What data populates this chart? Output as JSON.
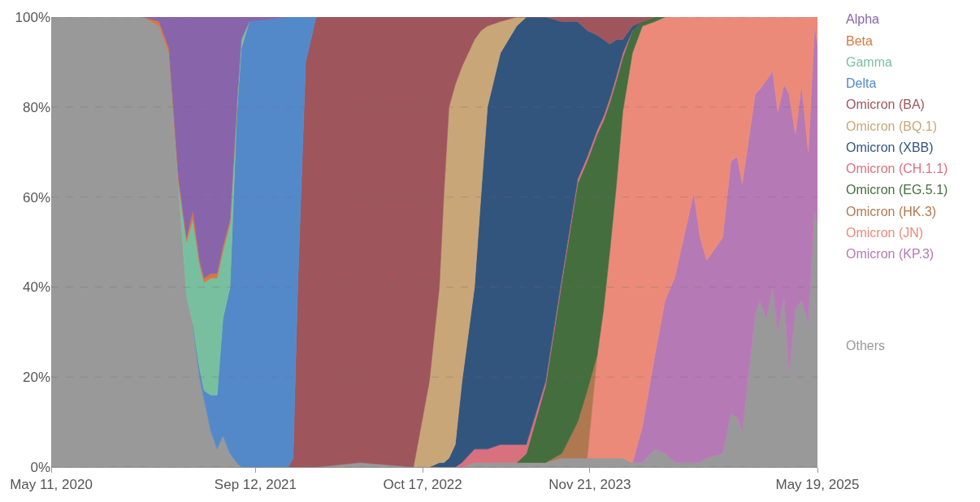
{
  "chart_data": {
    "type": "area",
    "stacked": true,
    "x": [
      "2020-05-11",
      "2020-12-17",
      "2021-01-24",
      "2021-02-17",
      "2021-03-12",
      "2021-03-31",
      "2021-04-15",
      "2021-05-01",
      "2021-05-12",
      "2021-05-28",
      "2021-06-12",
      "2021-06-26",
      "2021-07-13",
      "2021-07-29",
      "2021-08-09",
      "2021-08-28",
      "2021-11-29",
      "2021-12-11",
      "2021-12-22",
      "2022-01-10",
      "2022-02-04",
      "2022-05-21",
      "2022-09-25",
      "2022-11-02",
      "2022-11-26",
      "2022-12-07",
      "2022-12-19",
      "2023-01-03",
      "2023-01-19",
      "2023-02-18",
      "2023-03-06",
      "2023-03-21",
      "2023-04-21",
      "2023-05-30",
      "2023-06-22",
      "2023-08-07",
      "2023-09-15",
      "2023-10-23",
      "2023-11-15",
      "2023-12-09",
      "2023-12-24",
      "2024-01-08",
      "2024-01-24",
      "2024-02-08",
      "2024-03-02",
      "2024-03-26",
      "2024-04-25",
      "2024-05-19",
      "2024-06-11",
      "2024-07-27",
      "2024-08-11",
      "2024-08-27",
      "2024-10-04",
      "2024-10-24",
      "2024-11-08",
      "2024-11-20",
      "2024-12-21",
      "2025-01-01",
      "2025-01-17",
      "2025-02-01",
      "2025-02-13",
      "2025-02-28",
      "2025-03-12",
      "2025-03-27",
      "2025-04-11",
      "2025-04-27",
      "2025-05-12",
      "2025-05-19"
    ],
    "series": [
      {
        "name": "Others",
        "color": "#999999",
        "values": [
          100,
          100,
          98,
          92,
          62,
          38,
          32,
          20,
          15,
          8,
          4,
          7,
          3,
          1,
          0,
          0,
          0,
          0,
          0,
          0,
          0,
          1,
          0,
          0,
          0,
          0,
          0,
          0,
          0,
          1,
          1,
          1,
          1,
          1,
          1,
          1,
          2,
          2,
          2,
          2,
          2,
          2,
          2,
          2,
          1,
          1,
          4,
          3,
          1,
          1,
          1,
          2,
          3,
          12,
          11,
          8,
          34,
          37,
          33,
          40,
          30,
          38,
          21,
          35,
          37,
          32,
          57,
          54
        ]
      },
      {
        "name": "Omicron (KP.3)",
        "color": "#b57ab5",
        "values": [
          null,
          null,
          null,
          null,
          null,
          null,
          null,
          null,
          null,
          null,
          null,
          null,
          null,
          null,
          null,
          null,
          null,
          null,
          null,
          null,
          null,
          null,
          null,
          null,
          null,
          null,
          null,
          null,
          null,
          null,
          null,
          null,
          null,
          null,
          null,
          null,
          null,
          null,
          null,
          null,
          null,
          null,
          null,
          null,
          0,
          8,
          21,
          34,
          41,
          60,
          50,
          44,
          48,
          56,
          58,
          55,
          49,
          47,
          53,
          48,
          49,
          47,
          62,
          39,
          48,
          38,
          41,
          40
        ]
      },
      {
        "name": "Omicron (JN)",
        "color": "#ec8a7a",
        "values": [
          null,
          null,
          null,
          null,
          null,
          null,
          null,
          null,
          null,
          null,
          null,
          null,
          null,
          null,
          null,
          null,
          null,
          null,
          null,
          null,
          null,
          null,
          null,
          null,
          null,
          null,
          null,
          null,
          null,
          null,
          null,
          null,
          null,
          null,
          null,
          null,
          null,
          null,
          0,
          23,
          33,
          46,
          61,
          77,
          91,
          89,
          74,
          63,
          58,
          39,
          49,
          54,
          49,
          32,
          31,
          37,
          17,
          16,
          14,
          12,
          21,
          15,
          17,
          26,
          15,
          30,
          2,
          6
        ]
      },
      {
        "name": "Omicron (HK.3)",
        "color": "#b07850",
        "values": [
          null,
          null,
          null,
          null,
          null,
          null,
          null,
          null,
          null,
          null,
          null,
          null,
          null,
          null,
          null,
          null,
          null,
          null,
          null,
          null,
          null,
          null,
          null,
          null,
          null,
          null,
          null,
          null,
          null,
          null,
          null,
          null,
          null,
          null,
          null,
          0,
          1,
          8,
          15,
          0,
          null,
          null,
          null,
          null,
          null,
          null,
          null,
          null,
          null,
          null,
          null,
          null,
          null,
          null,
          null,
          null,
          null,
          null,
          null,
          null,
          null,
          null,
          null,
          null,
          null,
          null,
          null,
          null
        ]
      },
      {
        "name": "Omicron (EG.5.1)",
        "color": "#456e3e",
        "values": [
          null,
          null,
          null,
          null,
          null,
          null,
          null,
          null,
          null,
          null,
          null,
          null,
          null,
          null,
          null,
          null,
          null,
          null,
          null,
          null,
          null,
          null,
          null,
          null,
          null,
          null,
          null,
          null,
          null,
          null,
          null,
          null,
          null,
          0,
          2,
          17,
          38,
          53,
          51,
          49,
          42,
          33,
          23,
          12,
          5,
          1,
          1,
          0,
          null,
          null,
          null,
          null,
          null,
          null,
          null,
          null,
          null,
          null,
          null,
          null,
          null,
          null,
          null,
          null,
          null,
          null,
          null,
          null
        ]
      },
      {
        "name": "Omicron (CH.1.1)",
        "color": "#d9707e",
        "values": [
          null,
          null,
          null,
          null,
          null,
          null,
          null,
          null,
          null,
          null,
          null,
          null,
          null,
          null,
          null,
          null,
          null,
          null,
          null,
          null,
          null,
          null,
          null,
          null,
          null,
          null,
          null,
          0,
          1,
          3,
          3,
          3,
          4,
          4,
          2,
          1,
          1,
          1,
          1,
          1,
          1,
          1,
          1,
          1,
          0,
          null,
          null,
          null,
          null,
          null,
          null,
          null,
          null,
          null,
          null,
          null,
          null,
          null,
          null,
          null,
          null,
          null,
          null,
          null,
          null,
          null,
          null,
          null
        ]
      },
      {
        "name": "Omicron (XBB)",
        "color": "#32557e",
        "values": [
          null,
          null,
          null,
          null,
          null,
          null,
          null,
          null,
          null,
          null,
          null,
          null,
          null,
          null,
          null,
          null,
          null,
          null,
          null,
          null,
          null,
          null,
          null,
          0,
          1,
          1,
          2,
          5,
          18,
          36,
          57,
          76,
          87,
          93,
          95,
          81,
          57,
          35,
          28,
          21,
          17,
          12,
          8,
          3,
          1,
          0,
          null,
          null,
          null,
          null,
          null,
          null,
          null,
          null,
          null,
          null,
          null,
          null,
          null,
          null,
          null,
          null,
          null,
          null,
          null,
          null,
          null,
          null
        ]
      },
      {
        "name": "Omicron (BQ.1)",
        "color": "#c9a678",
        "values": [
          null,
          null,
          null,
          null,
          null,
          null,
          null,
          null,
          null,
          null,
          null,
          null,
          null,
          null,
          null,
          null,
          null,
          null,
          null,
          null,
          null,
          null,
          0,
          19,
          39,
          60,
          78,
          80,
          70,
          55,
          36,
          18,
          7,
          2,
          0,
          null,
          null,
          null,
          null,
          null,
          null,
          null,
          null,
          null,
          null,
          null,
          null,
          null,
          null,
          null,
          null,
          null,
          null,
          null,
          null,
          null,
          null,
          null,
          null,
          null,
          null,
          null,
          null,
          null,
          null,
          null,
          null,
          null
        ]
      },
      {
        "name": "Omicron (BA)",
        "color": "#9e555c",
        "values": [
          null,
          null,
          null,
          null,
          null,
          null,
          null,
          null,
          null,
          null,
          null,
          null,
          null,
          null,
          null,
          null,
          0,
          2,
          40,
          90,
          100,
          99,
          100,
          81,
          60,
          39,
          20,
          15,
          11,
          5,
          3,
          2,
          1,
          0,
          0,
          0,
          1,
          1,
          3,
          4,
          5,
          6,
          5,
          5,
          2,
          1,
          0,
          null,
          null,
          null,
          null,
          null,
          null,
          null,
          null,
          null,
          null,
          null,
          null,
          null,
          null,
          null,
          null,
          null,
          null,
          null,
          null,
          null
        ]
      },
      {
        "name": "Delta",
        "color": "#5389c9",
        "values": [
          null,
          null,
          null,
          null,
          null,
          null,
          0,
          2,
          2,
          8,
          12,
          26,
          37,
          77,
          93,
          99,
          100,
          98,
          60,
          10,
          0,
          null,
          null,
          null,
          null,
          null,
          null,
          null,
          null,
          null,
          null,
          null,
          null,
          null,
          null,
          null,
          null,
          null,
          null,
          null,
          null,
          null,
          null,
          null,
          null,
          null,
          null,
          null,
          null,
          null,
          null,
          null,
          null,
          null,
          null,
          null,
          null,
          null,
          null,
          null,
          null,
          null,
          null,
          null,
          null,
          null,
          null,
          null
        ]
      },
      {
        "name": "Gamma",
        "color": "#78bf9f",
        "values": [
          null,
          null,
          null,
          0,
          1,
          12,
          23,
          23,
          24,
          26,
          26,
          15,
          14,
          2,
          2,
          0,
          null,
          null,
          null,
          null,
          null,
          null,
          null,
          null,
          null,
          null,
          null,
          null,
          null,
          null,
          null,
          null,
          null,
          null,
          null,
          null,
          null,
          null,
          null,
          null,
          null,
          null,
          null,
          null,
          null,
          null,
          null,
          null,
          null,
          null,
          null,
          null,
          null,
          null,
          null,
          null,
          null,
          null,
          null,
          null,
          null,
          null,
          null,
          null,
          null,
          null,
          null,
          null
        ]
      },
      {
        "name": "Beta",
        "color": "#d8783e",
        "values": [
          null,
          0,
          1,
          1,
          1,
          1,
          2,
          1,
          1,
          1,
          1,
          1,
          1,
          0,
          null,
          null,
          null,
          null,
          null,
          null,
          null,
          null,
          null,
          null,
          null,
          null,
          null,
          null,
          null,
          null,
          null,
          null,
          null,
          null,
          null,
          null,
          null,
          null,
          null,
          null,
          null,
          null,
          null,
          null,
          null,
          null,
          null,
          null,
          null,
          null,
          null,
          null,
          null,
          null,
          null,
          null,
          null,
          null,
          null,
          null,
          null,
          null,
          null,
          null,
          null,
          null,
          null,
          null
        ]
      },
      {
        "name": "Alpha",
        "color": "#8864ab",
        "values": [
          null,
          0,
          1,
          7,
          36,
          49,
          43,
          54,
          58,
          57,
          57,
          51,
          45,
          20,
          5,
          1,
          0,
          null,
          null,
          null,
          null,
          null,
          null,
          null,
          null,
          null,
          null,
          null,
          null,
          null,
          null,
          null,
          null,
          null,
          null,
          null,
          null,
          null,
          null,
          null,
          null,
          null,
          null,
          null,
          null,
          null,
          null,
          null,
          null,
          null,
          null,
          null,
          null,
          null,
          null,
          null,
          null,
          null,
          null,
          null,
          null,
          null,
          null,
          null,
          null,
          null,
          null,
          null
        ]
      }
    ],
    "xlim": [
      "2020-05-11",
      "2025-05-19"
    ],
    "xticks": [
      {
        "value": "2020-05-11",
        "label": "May 11, 2020"
      },
      {
        "value": "2021-09-12",
        "label": "Sep 12, 2021"
      },
      {
        "value": "2022-10-17",
        "label": "Oct 17, 2022"
      },
      {
        "value": "2023-11-21",
        "label": "Nov 21, 2023"
      },
      {
        "value": "2025-05-19",
        "label": "May 19, 2025"
      }
    ],
    "ylim": [
      0,
      100
    ],
    "yticks": [
      {
        "value": 0,
        "label": "0%"
      },
      {
        "value": 20,
        "label": "20%"
      },
      {
        "value": 40,
        "label": "40%"
      },
      {
        "value": 60,
        "label": "60%"
      },
      {
        "value": 80,
        "label": "80%"
      },
      {
        "value": 100,
        "label": "100%"
      }
    ],
    "grid": "y",
    "legend": "right"
  }
}
